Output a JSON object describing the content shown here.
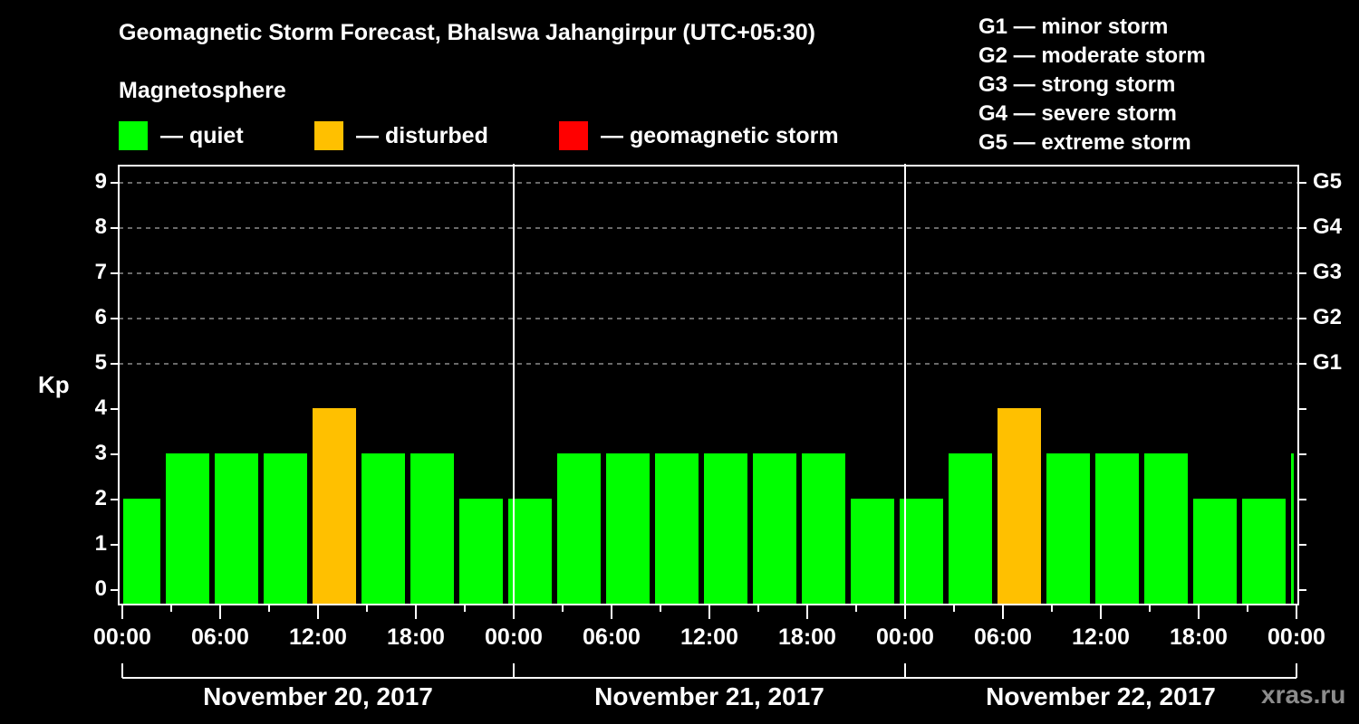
{
  "header": {
    "title": "Geomagnetic Storm Forecast, Bhalswa Jahangirpur (UTC+05:30)",
    "subtitle": "Magnetosphere"
  },
  "legend": [
    {
      "label": "— quiet",
      "color": "#00ff00"
    },
    {
      "label": "— disturbed",
      "color": "#ffc000"
    },
    {
      "label": "— geomagnetic storm",
      "color": "#ff0000"
    }
  ],
  "storm_scale": [
    "G1 — minor storm",
    "G2 — moderate storm",
    "G3 — strong storm",
    "G4 — severe storm",
    "G5 — extreme storm"
  ],
  "axes": {
    "ylabel": "Kp",
    "yticks": [
      "0",
      "1",
      "2",
      "3",
      "4",
      "5",
      "6",
      "7",
      "8",
      "9"
    ],
    "gticks": [
      "G1",
      "G2",
      "G3",
      "G4",
      "G5"
    ],
    "xticks": [
      "00:00",
      "06:00",
      "12:00",
      "18:00",
      "00:00",
      "06:00",
      "12:00",
      "18:00",
      "00:00",
      "06:00",
      "12:00",
      "18:00",
      "00:00"
    ],
    "days": [
      "November 20, 2017",
      "November 21, 2017",
      "November 22, 2017"
    ]
  },
  "watermark": "xras.ru",
  "chart_data": {
    "type": "bar",
    "title": "Geomagnetic Storm Forecast, Bhalswa Jahangirpur (UTC+05:30)",
    "xlabel": "",
    "ylabel": "Kp",
    "ylim": [
      0,
      9
    ],
    "grid": "dashed horizontal at Kp 5-9",
    "legend_position": "top",
    "time_zone": "UTC+05:30",
    "categories": [
      "Nov 20 00:00-02:30",
      "Nov 20 02:30",
      "Nov 20 05:30",
      "Nov 20 08:30",
      "Nov 20 11:30",
      "Nov 20 14:30",
      "Nov 20 17:30",
      "Nov 20 20:30",
      "Nov 20 23:30",
      "Nov 21 02:30",
      "Nov 21 05:30",
      "Nov 21 08:30",
      "Nov 21 11:30",
      "Nov 21 14:30",
      "Nov 21 17:30",
      "Nov 21 20:30",
      "Nov 21 23:30",
      "Nov 22 02:30",
      "Nov 22 05:30",
      "Nov 22 08:30",
      "Nov 22 11:30",
      "Nov 22 14:30",
      "Nov 22 17:30",
      "Nov 22 20:30",
      "Nov 22 23:30-00:00"
    ],
    "start_hours": [
      -0.5,
      2.5,
      5.5,
      8.5,
      11.5,
      14.5,
      17.5,
      20.5,
      23.5,
      26.5,
      29.5,
      32.5,
      35.5,
      38.5,
      41.5,
      44.5,
      47.5,
      50.5,
      53.5,
      56.5,
      59.5,
      62.5,
      65.5,
      68.5,
      71.5
    ],
    "values": [
      2,
      3,
      3,
      3,
      4,
      3,
      3,
      2,
      2,
      3,
      3,
      3,
      3,
      3,
      3,
      2,
      2,
      3,
      4,
      3,
      3,
      3,
      2,
      2,
      3
    ],
    "status": [
      "quiet",
      "quiet",
      "quiet",
      "quiet",
      "disturbed",
      "quiet",
      "quiet",
      "quiet",
      "quiet",
      "quiet",
      "quiet",
      "quiet",
      "quiet",
      "quiet",
      "quiet",
      "quiet",
      "quiet",
      "quiet",
      "disturbed",
      "quiet",
      "quiet",
      "quiet",
      "quiet",
      "quiet",
      "quiet"
    ],
    "colors": {
      "quiet": "#00ff00",
      "disturbed": "#ffc000",
      "storm": "#ff0000"
    },
    "storm_levels": {
      "G1": 5,
      "G2": 6,
      "G3": 7,
      "G4": 8,
      "G5": 9
    }
  }
}
